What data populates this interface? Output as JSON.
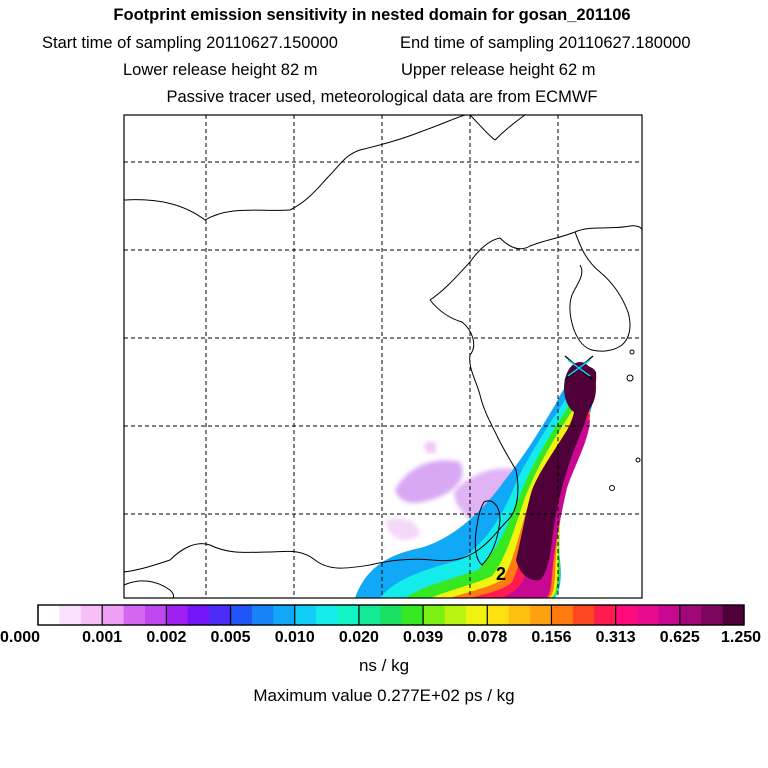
{
  "header": {
    "title": "Footprint emission sensitivity in nested domain for gosan_201106",
    "start_time": "Start time of sampling 20110627.150000",
    "end_time": "End time of sampling 20110627.180000",
    "lower_height": "Lower release height   82 m",
    "upper_height": "Upper release height   62 m",
    "tracer_note": "Passive tracer used, meteorological data are from ECMWF"
  },
  "chart_data": {
    "type": "heatmap",
    "title": "Footprint emission sensitivity in nested domain for gosan_201106",
    "colorbar_ticks": [
      "0.000",
      "0.001",
      "0.002",
      "0.005",
      "0.010",
      "0.020",
      "0.039",
      "0.078",
      "0.156",
      "0.313",
      "0.625",
      "1.250"
    ],
    "colorbar_colors": [
      "#ffffff",
      "#fbe0fb",
      "#f6c0f6",
      "#eea0f4",
      "#d466f2",
      "#c046f0",
      "#9f1ff2",
      "#7514f6",
      "#4d2cf8",
      "#2255f7",
      "#1882f7",
      "#12a8f8",
      "#12cdf6",
      "#14ecec",
      "#12f4c4",
      "#12e896",
      "#18e060",
      "#36e822",
      "#7cf012",
      "#b8f410",
      "#eef410",
      "#ffe010",
      "#ffc010",
      "#ffa010",
      "#ff7b10",
      "#ff4820",
      "#ff1a50",
      "#ff0a7a",
      "#ea0a90",
      "#c80890",
      "#a00878",
      "#7c0660",
      "#500038"
    ],
    "units": "ns / kg",
    "max_value_label": "Maximum value  0.277E+02 ps / kg",
    "label_on_map": "2",
    "receptor": "Gosan station marker"
  }
}
